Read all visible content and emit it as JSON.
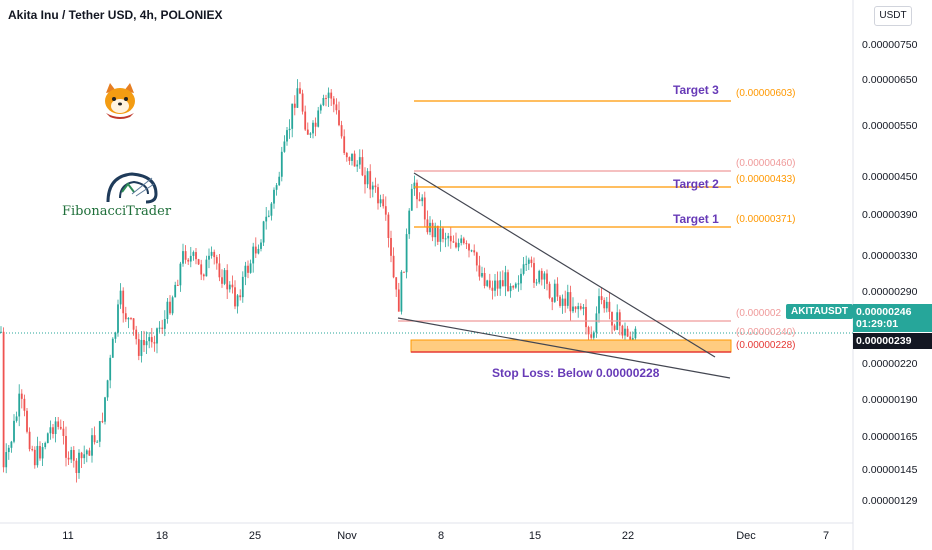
{
  "header": {
    "title": "Akita Inu / Tether USD, 4h, POLONIEX",
    "currency_button": "USDT"
  },
  "colors": {
    "up": "#26a69a",
    "down": "#ef5350",
    "target_line": "#ff9800",
    "target_text": "#673ab7",
    "stop_zone": "#ffcc80",
    "stop_line": "#e53935",
    "trendline": "#434651"
  },
  "price_axis": {
    "ticks": [
      "0.00000750",
      "0.00000650",
      "0.00000550",
      "0.00000450",
      "0.00000390",
      "0.00000330",
      "0.00000290",
      "0.00000220",
      "0.00000190",
      "0.00000165",
      "0.00000145",
      "0.00000129"
    ]
  },
  "time_axis": {
    "ticks": [
      "11",
      "18",
      "25",
      "Nov",
      "8",
      "15",
      "22",
      "Dec",
      "7"
    ]
  },
  "badges": {
    "symbol": "AKITAUSDT",
    "last_price": "0.00000246",
    "countdown": "01:29:01",
    "crosshair_price": "0.00000239"
  },
  "levels": {
    "target3_label": "Target 3",
    "target3_value": "(0.00000603)",
    "level460_value": "(0.00000460)",
    "target2_label": "Target 2",
    "target2_value": "(0.00000433)",
    "target1_label": "Target 1",
    "target1_value": "(0.00000371)",
    "level_partial_value": "(0.000002",
    "level240_value": "(0.00000240)",
    "level228_value": "(0.00000228)",
    "stop_loss_text": "Stop Loss: Below 0.00000228"
  },
  "logos": {
    "fibonacci_text": "FibonacciTrader"
  }
}
